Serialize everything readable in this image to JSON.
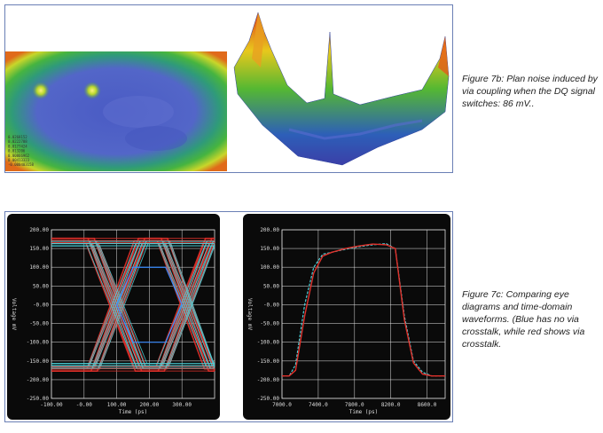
{
  "figure_7b": {
    "caption": "Figure 7b: Plan noise induced by via coupling when the DQ signal switches: 86 mV..",
    "legend_values": [
      "0.0268152",
      "0.0222788",
      "0.0177424",
      "0.013206",
      "0.00866962",
      "0.00413323",
      "-0.000403158"
    ]
  },
  "figure_7c": {
    "caption": "Figure 7c: Comparing eye diagrams and time-domain waveforms. (Blue has no via crosstalk, while red shows via crosstalk."
  },
  "colors": {
    "blue_trace": "#4fd0d8",
    "red_trace": "#e0302a",
    "grid": "#e8e8e8",
    "scope_bg": "#0a0a0a"
  },
  "chart_data": [
    {
      "type": "line",
      "title": "",
      "xlabel": "Time (ps)",
      "ylabel": "Voltage mV",
      "xlim": [
        -100,
        400
      ],
      "ylim": [
        -250,
        200
      ],
      "x_ticks": [
        "-100.00",
        "-0.00",
        "100.00",
        "200.00",
        "300.00"
      ],
      "y_ticks": [
        "200.00",
        "150.00",
        "100.00",
        "50.00",
        "-0.00",
        "-50.00",
        "-100.00",
        "-150.00",
        "-200.00",
        "-250.00"
      ],
      "series": [
        {
          "color": "#e0302a",
          "x": [
            -100,
            50,
            150,
            250,
            350
          ],
          "values": [
            160,
            160,
            -160,
            -160,
            160
          ]
        },
        {
          "color": "#4fd0d8",
          "x": [
            -100,
            50,
            150,
            250,
            350
          ],
          "values": [
            -160,
            -160,
            160,
            160,
            -160
          ]
        }
      ]
    },
    {
      "type": "line",
      "title": "",
      "xlabel": "Time (ps)",
      "ylabel": "Voltage mV",
      "xlim": [
        7000,
        8800
      ],
      "ylim": [
        -250,
        200
      ],
      "x_ticks": [
        "7000.0",
        "7400.0",
        "7800.0",
        "8200.0",
        "8600.0"
      ],
      "y_ticks": [
        "200.00",
        "150.00",
        "100.00",
        "50.00",
        "-0.00",
        "-50.00",
        "-100.00",
        "-150.00",
        "-200.00",
        "-250.00"
      ],
      "series": [
        {
          "color": "#4fd0d8",
          "x": [
            7000,
            7080,
            7150,
            7250,
            7350,
            7450,
            7550,
            7700,
            7850,
            8000,
            8150,
            8250,
            8350,
            8450,
            8550,
            8650,
            8800
          ],
          "values": [
            -190,
            -190,
            -160,
            0,
            100,
            135,
            140,
            148,
            155,
            160,
            163,
            150,
            -30,
            -150,
            -180,
            -190,
            -190
          ]
        },
        {
          "color": "#e0302a",
          "x": [
            7000,
            7080,
            7150,
            7250,
            7350,
            7450,
            7550,
            7700,
            7850,
            8000,
            8150,
            8250,
            8350,
            8450,
            8550,
            8650,
            8800
          ],
          "values": [
            -190,
            -190,
            -175,
            -30,
            85,
            130,
            140,
            150,
            157,
            162,
            160,
            150,
            -40,
            -155,
            -185,
            -190,
            -190
          ]
        }
      ]
    }
  ]
}
